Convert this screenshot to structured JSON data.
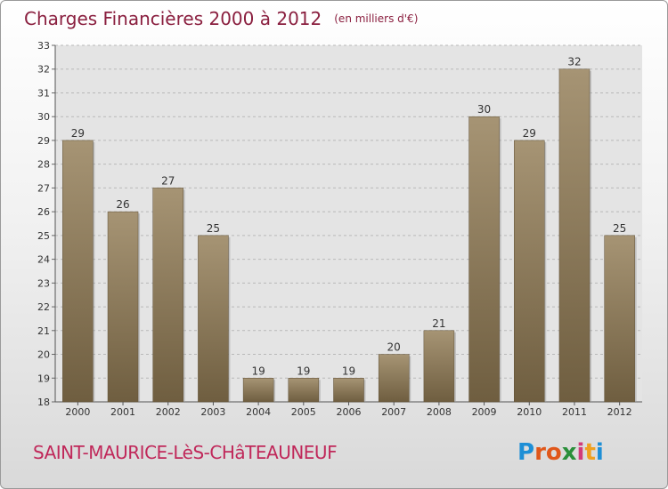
{
  "header": {
    "title": "Charges Financières 2000 à 2012",
    "subtitle": "(en milliers d'€)"
  },
  "footer": {
    "commune": "SAINT-MAURICE-LèS-CHâTEAUNEUF",
    "brand": "Proxiti"
  },
  "colors": {
    "bar_top": "#a69474",
    "bar_bottom": "#6f5e40",
    "title": "#8a1f3f",
    "commune": "#c0285a",
    "grid": "#b8b8b8"
  },
  "chart_data": {
    "type": "bar",
    "title": "Charges Financières 2000 à 2012",
    "subtitle": "(en milliers d'€)",
    "categories": [
      "2000",
      "2001",
      "2002",
      "2003",
      "2004",
      "2005",
      "2006",
      "2007",
      "2008",
      "2009",
      "2010",
      "2011",
      "2012"
    ],
    "values": [
      29,
      26,
      27,
      25,
      19,
      19,
      19,
      20,
      21,
      30,
      29,
      32,
      25
    ],
    "ylim": [
      18,
      33
    ],
    "yticks": [
      18,
      19,
      20,
      21,
      22,
      23,
      24,
      25,
      26,
      27,
      28,
      29,
      30,
      31,
      32,
      33
    ],
    "grid": true,
    "data_labels": true
  }
}
